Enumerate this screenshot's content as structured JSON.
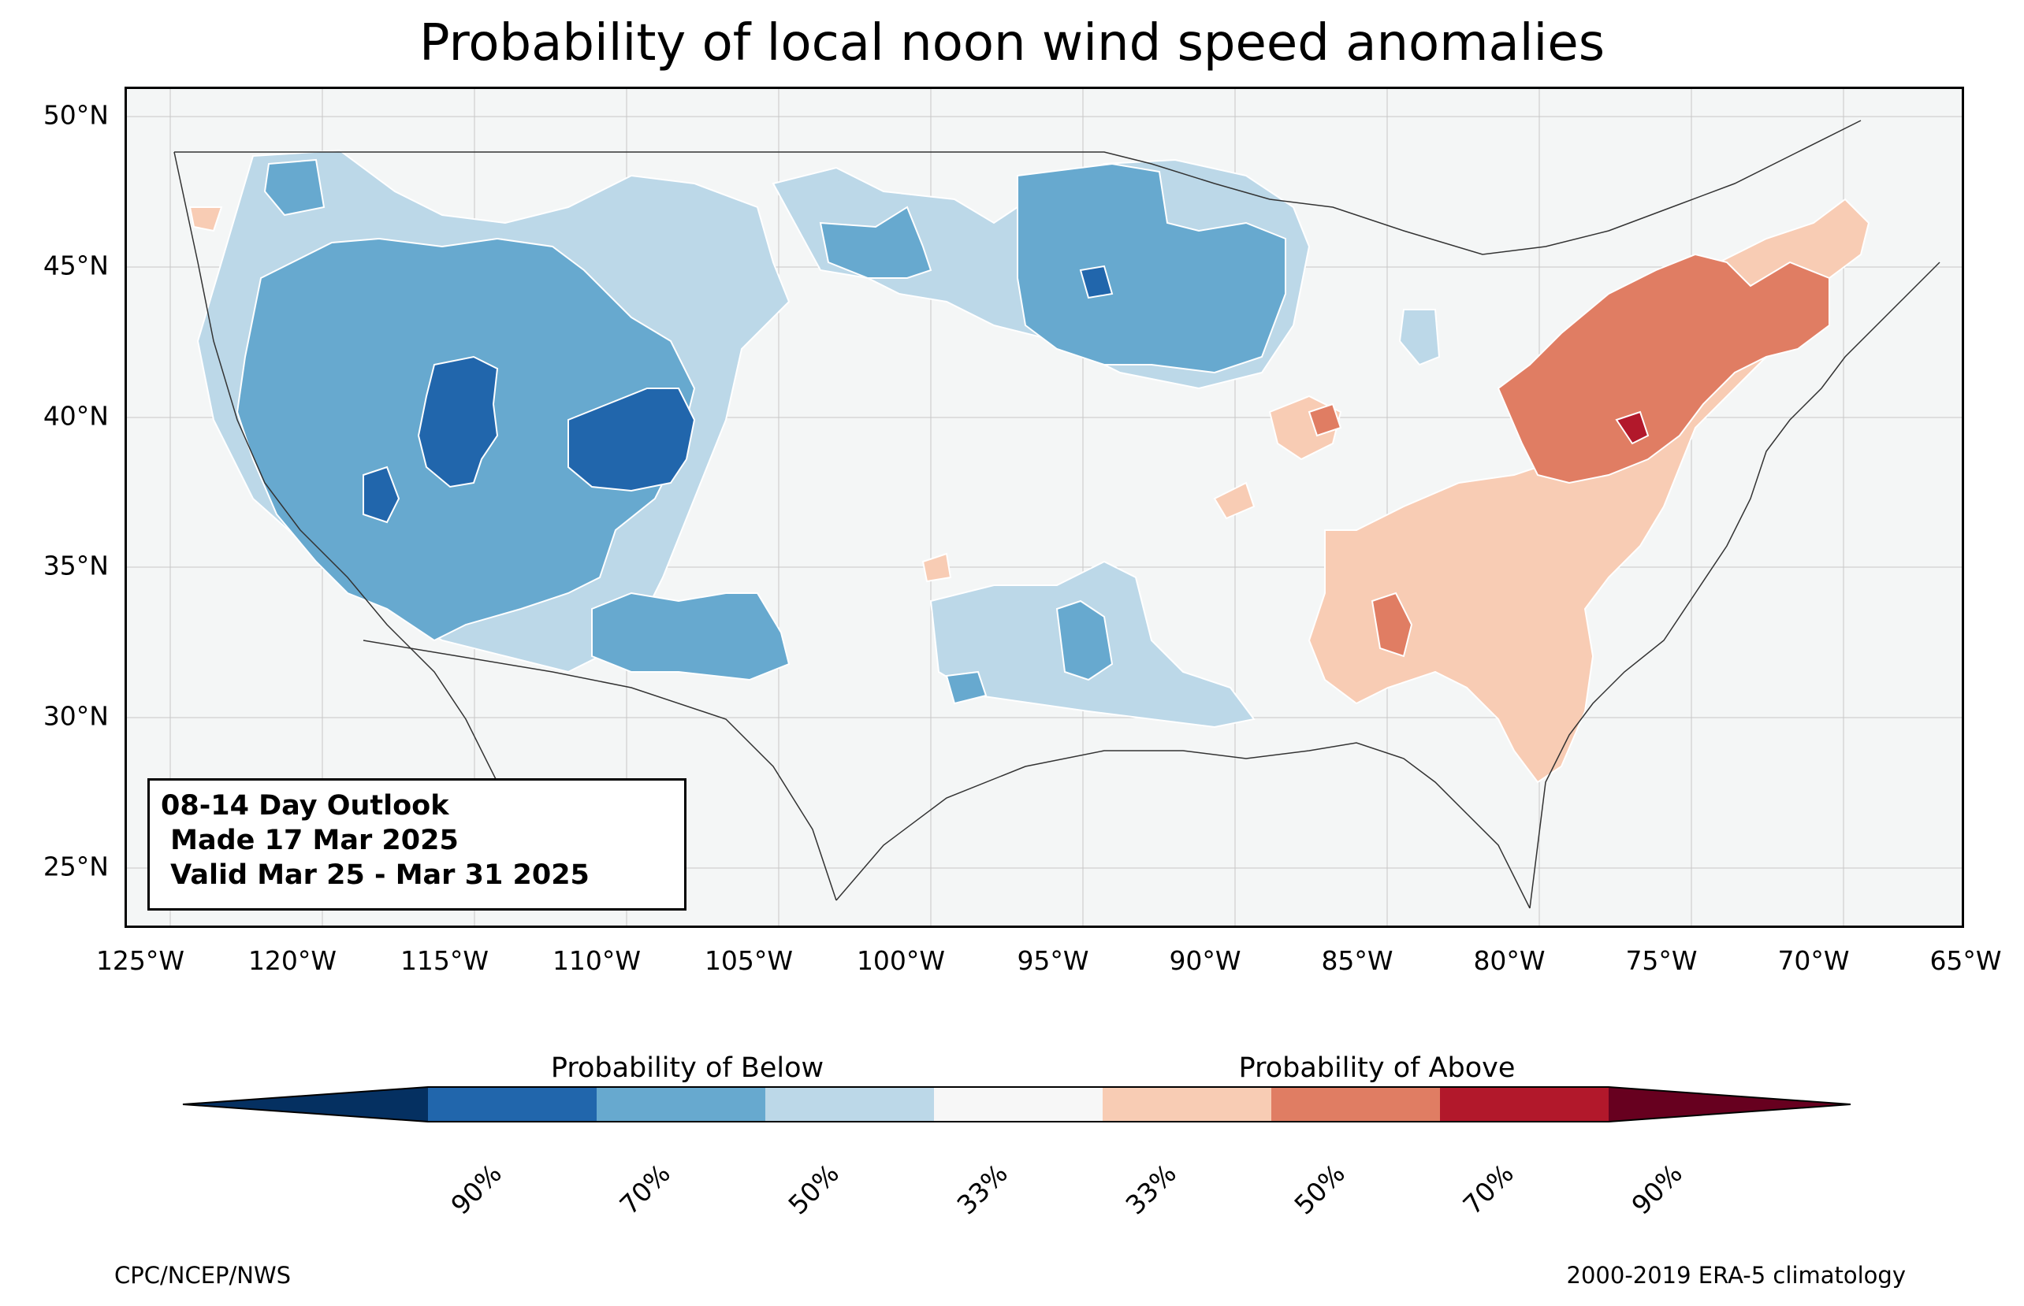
{
  "title": "Probability of local noon wind speed anomalies",
  "info_box": {
    "line1": "08-14 Day Outlook",
    "line2": " Made 17 Mar 2025",
    "line3": " Valid Mar 25 - Mar 31 2025"
  },
  "map": {
    "lon_range": [
      -125.5,
      -65
    ],
    "lat_range": [
      23,
      51
    ],
    "lat_ticks": [
      "50°N",
      "45°N",
      "40°N",
      "35°N",
      "30°N",
      "25°N"
    ],
    "lon_ticks": [
      "125°W",
      "120°W",
      "115°W",
      "110°W",
      "105°W",
      "100°W",
      "95°W",
      "90°W",
      "85°W",
      "80°W",
      "75°W",
      "70°W",
      "65°W"
    ],
    "background_color": "#f4f6f6",
    "regions": [
      {
        "category": "below-33",
        "area": "northern Rockies / Montana"
      },
      {
        "category": "below-50",
        "area": "Great Basin and Southwest"
      },
      {
        "category": "below-70",
        "area": "Utah / Colorado Plateau"
      },
      {
        "category": "below-50",
        "area": "upper Midwest (Minnesota / Wisconsin)"
      },
      {
        "category": "below-33",
        "area": "southern Plains / Louisiana"
      },
      {
        "category": "above-33",
        "area": "Southeast and Mid-Atlantic"
      },
      {
        "category": "above-50",
        "area": "Pennsylvania / New York / New England"
      },
      {
        "category": "above-50",
        "area": "Georgia"
      }
    ]
  },
  "colorbar": {
    "below_label": "Probability of Below",
    "above_label": "Probability of Above",
    "ticks": [
      "90%",
      "70%",
      "50%",
      "33%",
      "33%",
      "50%",
      "70%",
      "90%"
    ],
    "colors": [
      "#053061",
      "#2166ac",
      "#67a9cf",
      "#bcd8e8",
      "#f7f7f7",
      "#f8ccb4",
      "#e07d63",
      "#b2182b",
      "#67001f"
    ]
  },
  "footer": {
    "left": "CPC/NCEP/NWS",
    "right": "2000-2019 ERA-5 climatology"
  }
}
